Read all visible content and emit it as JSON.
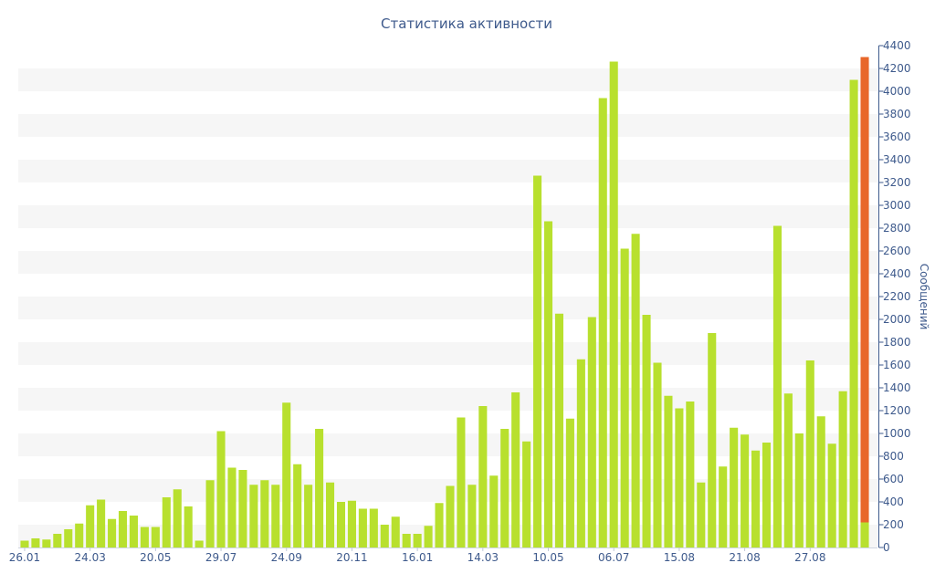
{
  "chart_data": {
    "type": "bar",
    "title": "Статистика активности",
    "ylabel": "Сообщений",
    "xlabel": "",
    "ylim": [
      0,
      4400
    ],
    "y_ticks": [
      0,
      200,
      400,
      600,
      800,
      1000,
      1200,
      1400,
      1600,
      1800,
      2000,
      2200,
      2400,
      2600,
      2800,
      3000,
      3200,
      3400,
      3600,
      3800,
      4000,
      4200,
      4400
    ],
    "y_axis_position": "right",
    "grid": "alternating horizontal bands",
    "x_tick_labels": [
      {
        "label": "26.01",
        "index": 0
      },
      {
        "label": "24.03",
        "index": 6
      },
      {
        "label": "20.05",
        "index": 12
      },
      {
        "label": "29.07",
        "index": 18
      },
      {
        "label": "24.09",
        "index": 24
      },
      {
        "label": "20.11",
        "index": 30
      },
      {
        "label": "16.01",
        "index": 36
      },
      {
        "label": "14.03",
        "index": 42
      },
      {
        "label": "10.05",
        "index": 48
      },
      {
        "label": "06.07",
        "index": 54
      },
      {
        "label": "15.08",
        "index": 60
      },
      {
        "label": "21.08",
        "index": 66
      },
      {
        "label": "27.08",
        "index": 72
      }
    ],
    "series": [
      {
        "color": "#b8e02e",
        "values": [
          60,
          80,
          70,
          120,
          160,
          210,
          370,
          420,
          250,
          320,
          280,
          180,
          180,
          440,
          510,
          360,
          60,
          590,
          1020,
          700,
          680,
          550,
          590,
          550,
          1270,
          730,
          550,
          1040,
          570,
          400,
          410,
          340,
          340,
          200,
          270,
          120,
          120,
          190,
          390,
          540,
          1140,
          550,
          1240,
          630,
          1040,
          1360,
          930,
          3260,
          2860,
          2050,
          1130,
          1650,
          2020,
          3940,
          4260,
          2620,
          2750,
          2040,
          1620,
          1330,
          1220,
          1280,
          570,
          1880,
          710,
          1050,
          990,
          850,
          920,
          2820,
          1350,
          1000,
          1640,
          1150,
          910,
          1370,
          4100,
          220
        ]
      }
    ],
    "highlight_bar": {
      "value": 4300,
      "color": "#e8672a",
      "lower_color": "#b8e02e",
      "lower_value": 220
    }
  },
  "colors": {
    "bar": "#b8e02e",
    "highlight": "#e8672a",
    "text": "#3e5a8c",
    "band": "#f6f6f6",
    "axis": "#3e5a8c"
  }
}
